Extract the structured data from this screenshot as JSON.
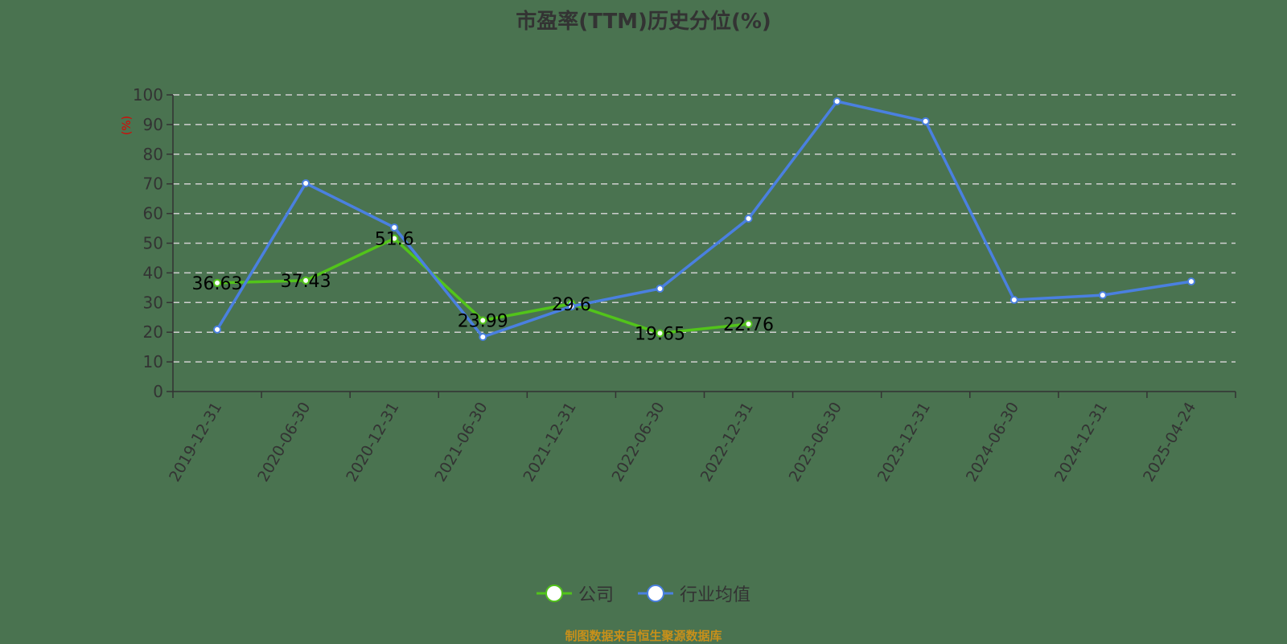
{
  "title": "市盈率(TTM)历史分位(%)",
  "source_note": "制图数据来自恒生聚源数据库",
  "colors": {
    "background": "#4a7350",
    "company": "#52c41a",
    "industry": "#4a80e0",
    "grid": "#d0d0d0",
    "axis": "#333333",
    "ylabel": "#e00000",
    "source": "#c8901a"
  },
  "chart_data": {
    "type": "line",
    "title": "市盈率(TTM)历史分位(%)",
    "xlabel": "",
    "ylabel": "(%)",
    "ylim": [
      0,
      100
    ],
    "yticks": [
      0,
      10,
      20,
      30,
      40,
      50,
      60,
      70,
      80,
      90,
      100
    ],
    "grid": true,
    "legend_position": "bottom",
    "categories": [
      "2019-12-31",
      "2020-06-30",
      "2020-12-31",
      "2021-06-30",
      "2021-12-31",
      "2022-06-30",
      "2022-12-31",
      "2023-06-30",
      "2023-12-31",
      "2024-06-30",
      "2024-12-31",
      "2025-04-24"
    ],
    "series": [
      {
        "name": "公司",
        "values": [
          36.63,
          37.43,
          51.6,
          23.99,
          29.6,
          19.65,
          22.76,
          null,
          null,
          null,
          null,
          null
        ],
        "labels": true
      },
      {
        "name": "行业均值",
        "values": [
          20.9,
          70.2,
          55.3,
          18.4,
          28.7,
          34.7,
          58.3,
          97.8,
          91.1,
          30.9,
          32.5,
          37.1
        ],
        "labels": false
      }
    ]
  },
  "legend": {
    "company": "公司",
    "industry": "行业均值"
  }
}
